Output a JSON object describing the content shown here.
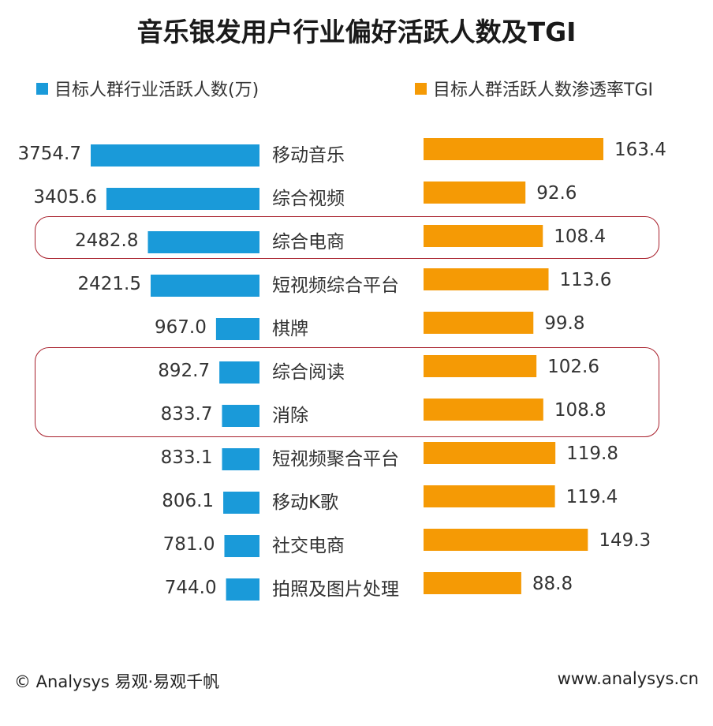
{
  "chart_data": {
    "type": "bar",
    "title": "音乐银发用户行业偏好活跃人数及TGI",
    "categories": [
      "移动音乐",
      "综合视频",
      "综合电商",
      "短视频综合平台",
      "棋牌",
      "综合阅读",
      "消除",
      "短视频聚合平台",
      "移动K歌",
      "社交电商",
      "拍照及图片处理"
    ],
    "series": [
      {
        "name": "目标人群行业活跃人数(万)",
        "color": "#1a9ad9",
        "values": [
          3754.7,
          3405.6,
          2482.8,
          2421.5,
          967.0,
          892.7,
          833.7,
          833.1,
          806.1,
          781.0,
          744.0
        ],
        "labels": [
          "3754.7",
          "3405.6",
          "2482.8",
          "2421.5",
          "967.0",
          "892.7",
          "833.7",
          "833.1",
          "806.1",
          "781.0",
          "744.0"
        ]
      },
      {
        "name": "目标人群活跃人数渗透率TGI",
        "color": "#f59a05",
        "values": [
          163.4,
          92.6,
          108.4,
          113.6,
          99.8,
          102.6,
          108.8,
          119.8,
          119.4,
          149.3,
          88.8
        ],
        "labels": [
          "163.4",
          "92.6",
          "108.4",
          "113.6",
          "99.8",
          "102.6",
          "108.8",
          "119.8",
          "119.4",
          "149.3",
          "88.8"
        ]
      }
    ],
    "highlighted_groups": [
      [
        "综合电商"
      ],
      [
        "综合阅读",
        "消除"
      ]
    ]
  },
  "footer": {
    "left": "© Analysys 易观·易观千帆",
    "right": "www.analysys.cn"
  }
}
